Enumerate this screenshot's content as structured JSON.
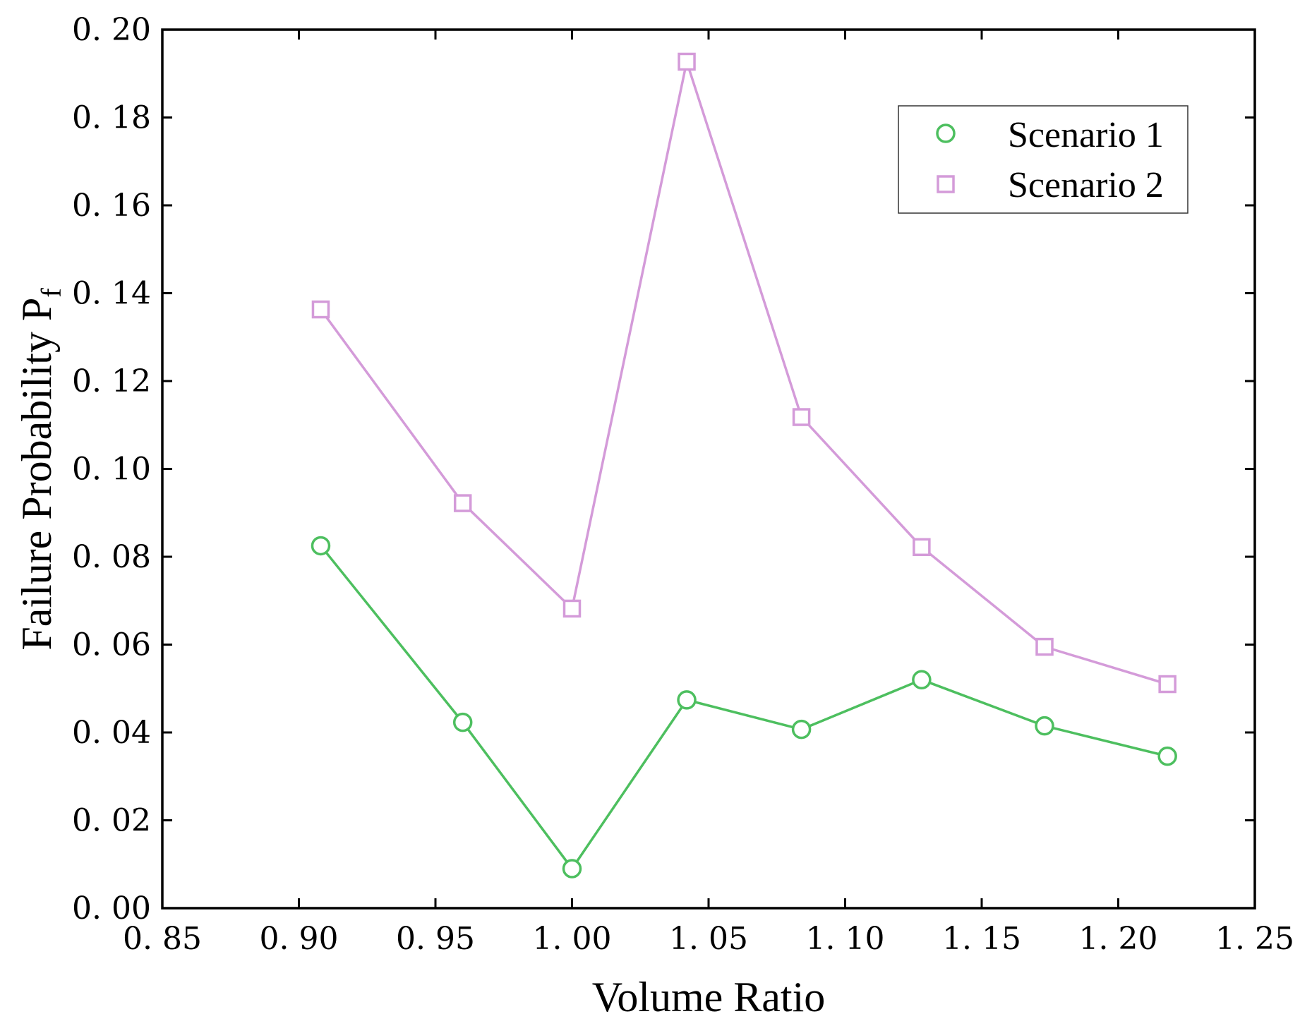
{
  "chart_data": {
    "type": "line",
    "xlabel": "Volume Ratio",
    "ylabel": "Failure Probability P",
    "ylabel_subscript": "f",
    "xlim": [
      0.85,
      1.25
    ],
    "ylim": [
      0.0,
      0.2
    ],
    "xticks": [
      0.85,
      0.9,
      0.95,
      1.0,
      1.05,
      1.1,
      1.15,
      1.2,
      1.25
    ],
    "yticks": [
      0.0,
      0.02,
      0.04,
      0.06,
      0.08,
      0.1,
      0.12,
      0.14,
      0.16,
      0.18,
      0.2
    ],
    "xtick_labels": [
      "0. 85",
      "0. 90",
      "0. 95",
      "1. 00",
      "1. 05",
      "1. 10",
      "1. 15",
      "1. 20",
      "1. 25"
    ],
    "ytick_labels": [
      "0. 00",
      "0. 02",
      "0. 04",
      "0. 06",
      "0. 08",
      "0. 10",
      "0. 12",
      "0. 14",
      "0. 16",
      "0. 18",
      "0. 20"
    ],
    "grid": false,
    "legend_position": "top-right",
    "series": [
      {
        "name": "Scenario 1",
        "marker": "circle",
        "color": "#4DBF5F",
        "x": [
          0.908,
          0.96,
          1.0,
          1.042,
          1.084,
          1.128,
          1.173,
          1.218
        ],
        "y": [
          0.0825,
          0.0423,
          0.009,
          0.0474,
          0.0407,
          0.052,
          0.0415,
          0.0346
        ]
      },
      {
        "name": "Scenario 2",
        "marker": "square",
        "color": "#D49BD9",
        "x": [
          0.908,
          0.96,
          1.0,
          1.042,
          1.084,
          1.128,
          1.173,
          1.218
        ],
        "y": [
          0.1363,
          0.0922,
          0.0682,
          0.1927,
          0.1118,
          0.0822,
          0.0595,
          0.051
        ]
      }
    ]
  }
}
